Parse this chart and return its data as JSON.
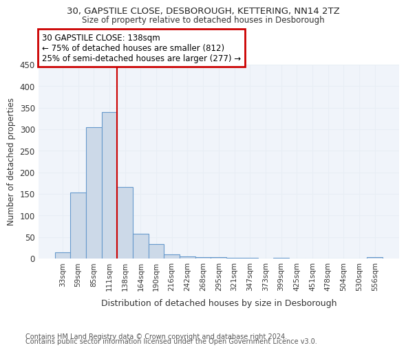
{
  "title1": "30, GAPSTILE CLOSE, DESBOROUGH, KETTERING, NN14 2TZ",
  "title2": "Size of property relative to detached houses in Desborough",
  "xlabel": "Distribution of detached houses by size in Desborough",
  "ylabel": "Number of detached properties",
  "footer1": "Contains HM Land Registry data © Crown copyright and database right 2024.",
  "footer2": "Contains public sector information licensed under the Open Government Licence v3.0.",
  "categories": [
    "33sqm",
    "59sqm",
    "85sqm",
    "111sqm",
    "138sqm",
    "164sqm",
    "190sqm",
    "216sqm",
    "242sqm",
    "268sqm",
    "295sqm",
    "321sqm",
    "347sqm",
    "373sqm",
    "399sqm",
    "425sqm",
    "451sqm",
    "478sqm",
    "504sqm",
    "530sqm",
    "556sqm"
  ],
  "values": [
    15,
    153,
    305,
    340,
    165,
    57,
    33,
    10,
    5,
    3,
    3,
    2,
    1,
    0,
    1,
    0,
    0,
    0,
    0,
    0,
    3
  ],
  "bar_color": "#ccd9e8",
  "bar_edge_color": "#6699cc",
  "highlight_index": 4,
  "highlight_line_color": "#cc0000",
  "annotation_line1": "30 GAPSTILE CLOSE: 138sqm",
  "annotation_line2": "← 75% of detached houses are smaller (812)",
  "annotation_line3": "25% of semi-detached houses are larger (277) →",
  "annotation_box_color": "#cc0000",
  "ylim": [
    0,
    450
  ],
  "yticks": [
    0,
    50,
    100,
    150,
    200,
    250,
    300,
    350,
    400,
    450
  ],
  "background_color": "#ffffff",
  "plot_bg_color": "#f0f4fa",
  "grid_color": "#e8eef5"
}
